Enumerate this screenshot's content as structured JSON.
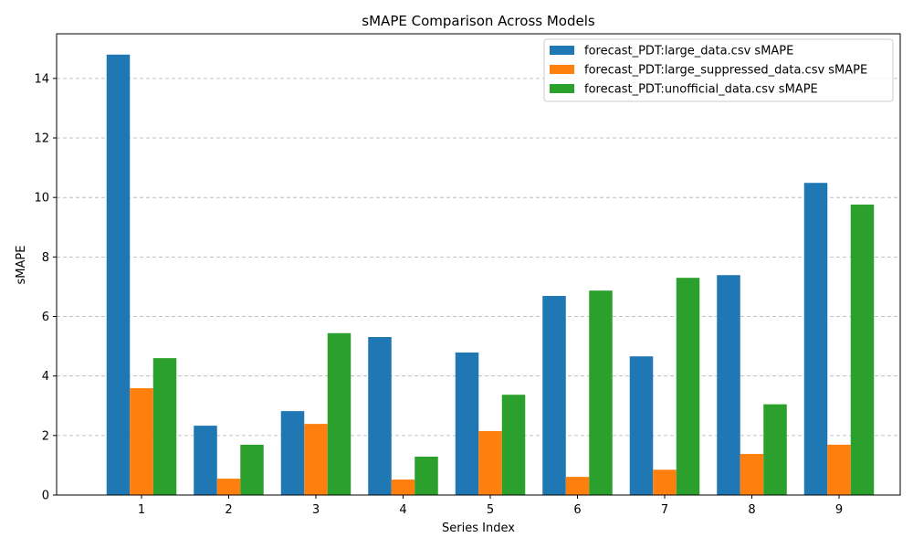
{
  "chart_data": {
    "type": "bar",
    "title": "sMAPE Comparison Across Models",
    "xlabel": "Series Index",
    "ylabel": "sMAPE",
    "categories": [
      "1",
      "2",
      "3",
      "4",
      "5",
      "6",
      "7",
      "8",
      "9"
    ],
    "series": [
      {
        "name": "forecast_PDT:large_data.csv sMAPE",
        "color": "#1f77b4",
        "values": [
          14.8,
          2.33,
          2.82,
          5.31,
          4.79,
          6.69,
          4.66,
          7.39,
          10.49
        ]
      },
      {
        "name": "forecast_PDT:large_suppressed_data.csv sMAPE",
        "color": "#ff7f0e",
        "values": [
          3.59,
          0.55,
          2.39,
          0.52,
          2.15,
          0.61,
          0.85,
          1.38,
          1.69
        ]
      },
      {
        "name": "forecast_PDT:unofficial_data.csv sMAPE",
        "color": "#2ca02c",
        "values": [
          4.6,
          1.69,
          5.44,
          1.29,
          3.37,
          6.87,
          7.3,
          3.05,
          9.76
        ]
      }
    ],
    "ylim": [
      0,
      15.5
    ],
    "yticks": [
      0,
      2,
      4,
      6,
      8,
      10,
      12,
      14
    ],
    "grid": "y-dashed",
    "legend": "top-right"
  }
}
